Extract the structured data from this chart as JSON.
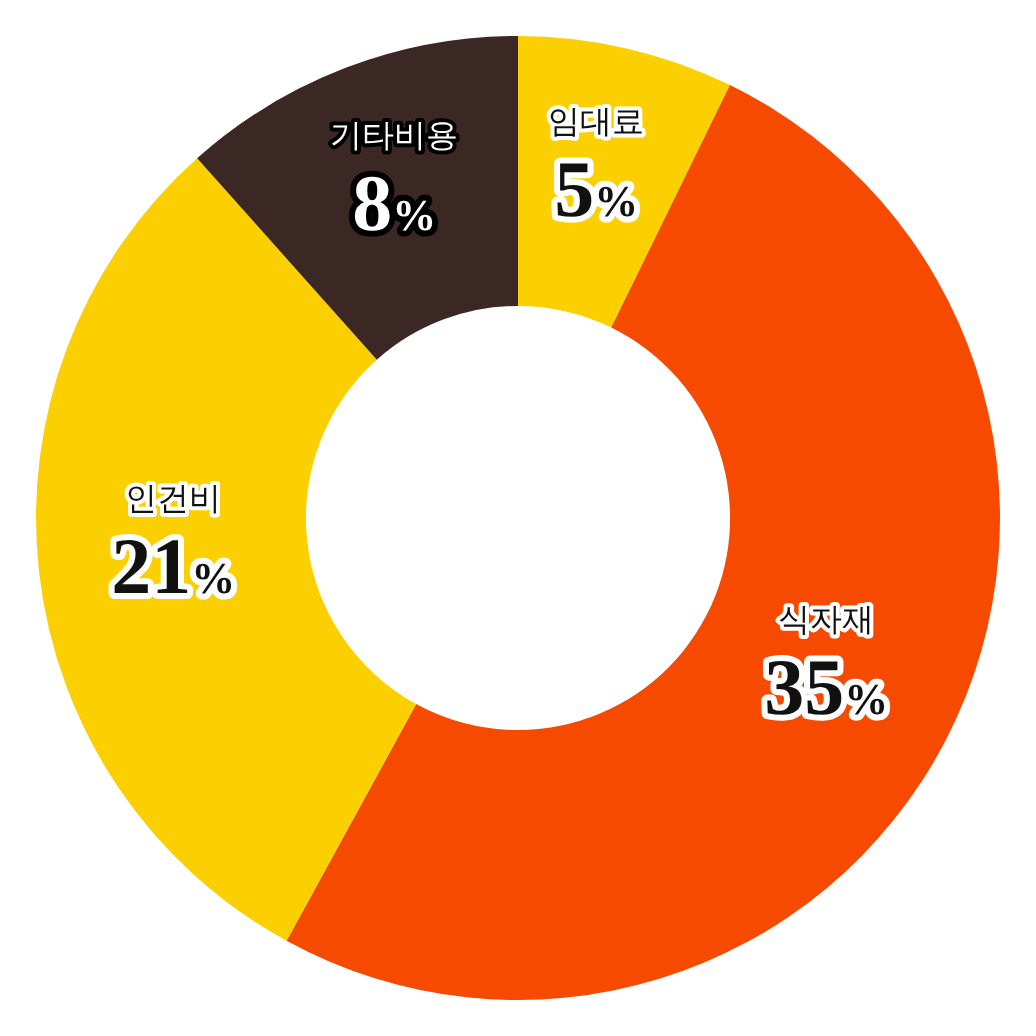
{
  "chart_data": {
    "type": "donut",
    "categories": [
      "임대료",
      "식자재",
      "인건비",
      "기타비용"
    ],
    "values": [
      5,
      35,
      21,
      8
    ],
    "value_labels": [
      "5%",
      "35%",
      "21%",
      "8%"
    ],
    "colors": [
      "#fcd000",
      "#f54a00",
      "#fcd000",
      "#3b2824"
    ],
    "legend": false
  }
}
